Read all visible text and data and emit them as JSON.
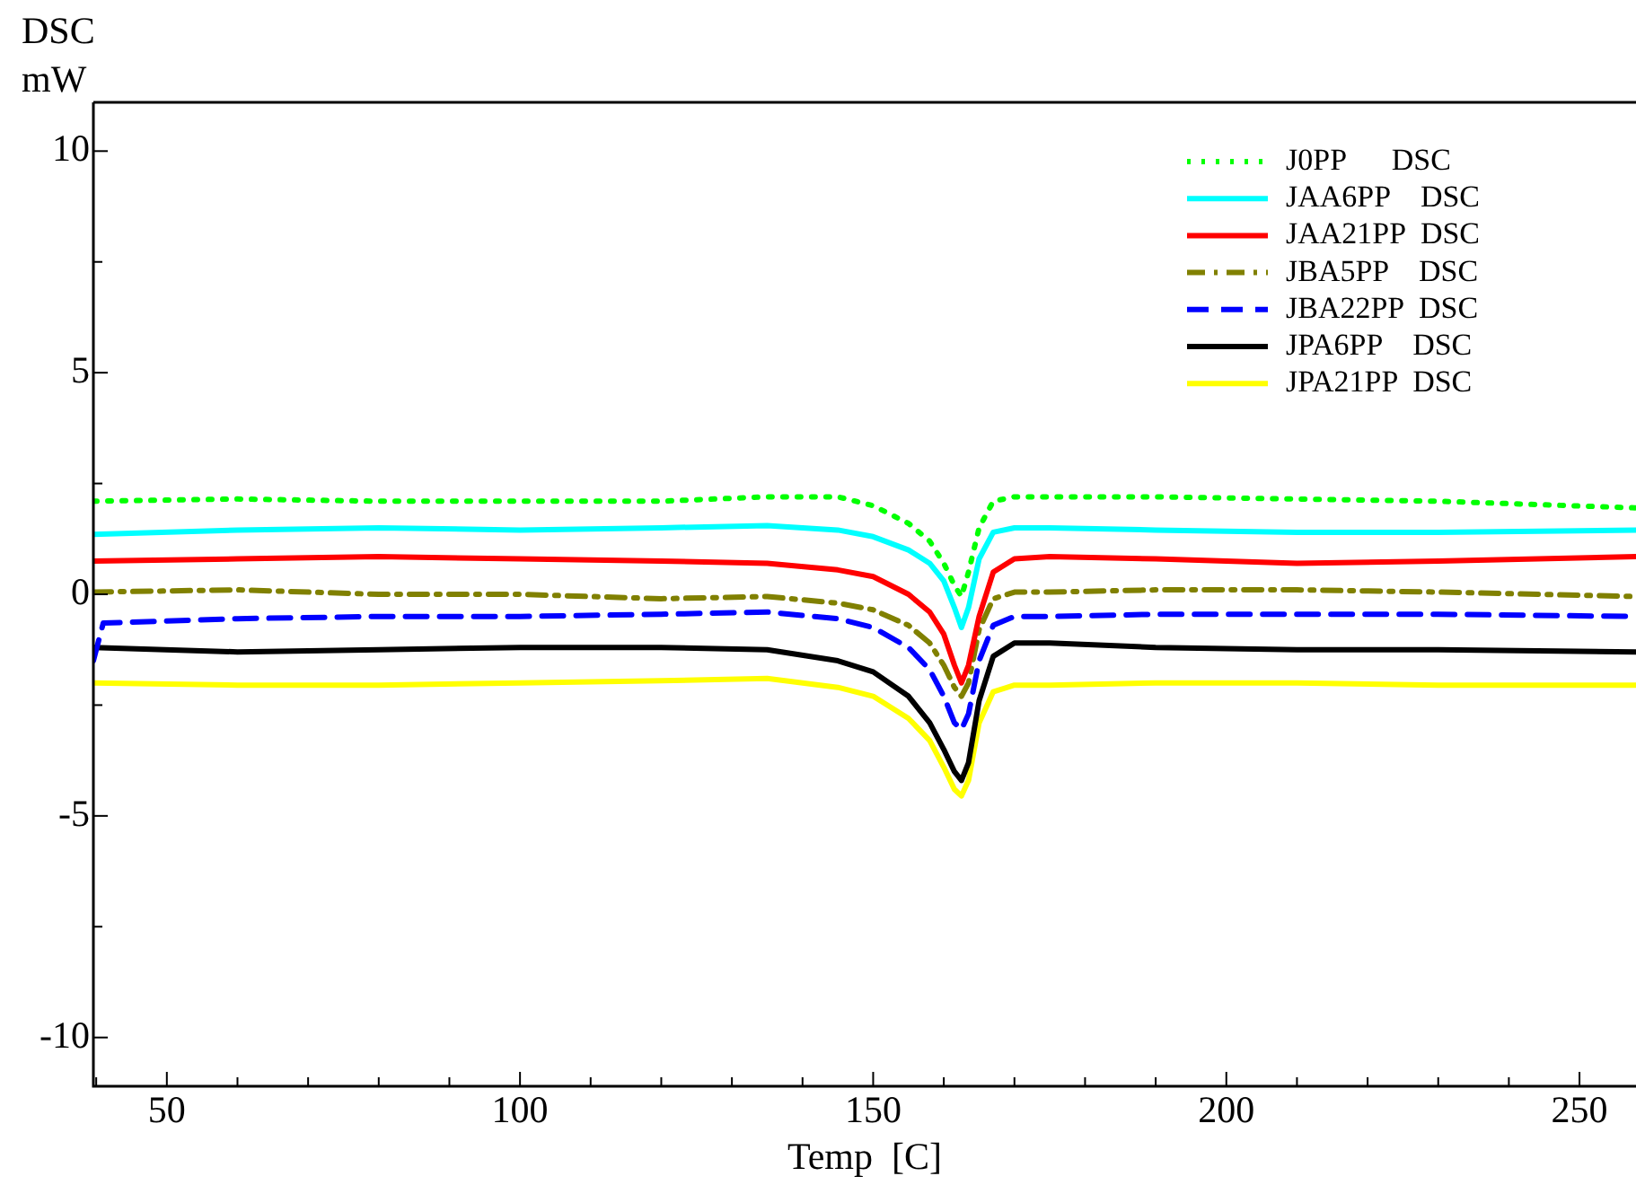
{
  "chart_data": {
    "type": "line",
    "xlabel": "Temp  [C]",
    "ylabel": "DSC mW",
    "x": [
      39.6,
      60,
      80,
      100,
      120,
      135,
      145,
      150,
      155,
      158,
      160,
      161.5,
      162.5,
      163.5,
      165,
      167,
      170,
      175,
      190,
      210,
      230,
      258
    ],
    "xlim": [
      39.6,
      258
    ],
    "ylim": [
      -11.1,
      11.1
    ],
    "xticks": [
      {
        "value": 40,
        "label": null
      },
      50,
      {
        "value": 60,
        "label": null
      },
      {
        "value": 70,
        "label": null
      },
      {
        "value": 80,
        "label": null
      },
      {
        "value": 90,
        "label": null
      },
      100,
      {
        "value": 110,
        "label": null
      },
      {
        "value": 120,
        "label": null
      },
      {
        "value": 130,
        "label": null
      },
      {
        "value": 140,
        "label": null
      },
      150,
      {
        "value": 160,
        "label": null
      },
      {
        "value": 170,
        "label": null
      },
      {
        "value": 180,
        "label": null
      },
      {
        "value": 190,
        "label": null
      },
      200,
      {
        "value": 210,
        "label": null
      },
      {
        "value": 220,
        "label": null
      },
      {
        "value": 230,
        "label": null
      },
      {
        "value": 240,
        "label": null
      },
      250
    ],
    "yticks": [
      -10,
      {
        "value": -7.5,
        "label": null
      },
      -5,
      {
        "value": -2.5,
        "label": null
      },
      0,
      {
        "value": 2.5,
        "label": null
      },
      5,
      {
        "value": 7.5,
        "label": null
      },
      10
    ],
    "grid": false,
    "legend": "top right",
    "marker": "none",
    "series": [
      {
        "name": "J0PP      DSC",
        "color": "#00ff00",
        "line_style": "dotted",
        "values": [
          2.1,
          2.15,
          2.1,
          2.1,
          2.1,
          2.2,
          2.2,
          2.0,
          1.6,
          1.2,
          0.7,
          0.2,
          -0.05,
          0.5,
          1.5,
          2.1,
          2.2,
          2.2,
          2.2,
          2.15,
          2.1,
          1.95
        ]
      },
      {
        "name": "JAA6PP    DSC",
        "color": "#00ffff",
        "line_style": "solid",
        "values": [
          1.35,
          1.45,
          1.5,
          1.45,
          1.5,
          1.55,
          1.45,
          1.3,
          1.0,
          0.7,
          0.3,
          -0.3,
          -0.75,
          -0.3,
          0.8,
          1.4,
          1.5,
          1.5,
          1.45,
          1.4,
          1.4,
          1.45
        ]
      },
      {
        "name": "JAA21PP  DSC",
        "color": "#ff0000",
        "line_style": "solid",
        "values": [
          0.75,
          0.8,
          0.85,
          0.8,
          0.75,
          0.7,
          0.55,
          0.4,
          0.0,
          -0.4,
          -0.9,
          -1.6,
          -2.0,
          -1.6,
          -0.5,
          0.5,
          0.8,
          0.85,
          0.8,
          0.7,
          0.75,
          0.85
        ]
      },
      {
        "name": "JBA5PP    DSC",
        "color": "#808000",
        "line_style": "dashdot",
        "values": [
          0.05,
          0.1,
          0.0,
          0.0,
          -0.1,
          -0.05,
          -0.2,
          -0.35,
          -0.7,
          -1.1,
          -1.6,
          -2.1,
          -2.3,
          -2.0,
          -0.8,
          -0.1,
          0.05,
          0.05,
          0.1,
          0.1,
          0.05,
          -0.05
        ]
      },
      {
        "name": "JBA22PP  DSC",
        "color": "#0000ff",
        "line_style": "dashed",
        "x": [
          39.6,
          41,
          60,
          80,
          100,
          120,
          135,
          145,
          150,
          155,
          158,
          160,
          161.5,
          162.5,
          163.5,
          165,
          167,
          170,
          175,
          190,
          210,
          230,
          258
        ],
        "values": [
          -1.5,
          -0.65,
          -0.55,
          -0.5,
          -0.5,
          -0.45,
          -0.4,
          -0.55,
          -0.75,
          -1.2,
          -1.7,
          -2.3,
          -2.9,
          -3.05,
          -2.7,
          -1.5,
          -0.7,
          -0.5,
          -0.5,
          -0.45,
          -0.45,
          -0.45,
          -0.5
        ]
      },
      {
        "name": "JPA6PP    DSC",
        "color": "#000000",
        "line_style": "solid",
        "values": [
          -1.2,
          -1.3,
          -1.25,
          -1.2,
          -1.2,
          -1.25,
          -1.5,
          -1.75,
          -2.3,
          -2.9,
          -3.5,
          -4.0,
          -4.2,
          -3.8,
          -2.4,
          -1.4,
          -1.1,
          -1.1,
          -1.2,
          -1.25,
          -1.25,
          -1.3
        ]
      },
      {
        "name": "JPA21PP  DSC",
        "color": "#ffff00",
        "line_style": "solid",
        "values": [
          -2.0,
          -2.05,
          -2.05,
          -2.0,
          -1.95,
          -1.9,
          -2.1,
          -2.3,
          -2.8,
          -3.3,
          -3.9,
          -4.4,
          -4.55,
          -4.2,
          -2.9,
          -2.2,
          -2.05,
          -2.05,
          -2.0,
          -2.0,
          -2.05,
          -2.05
        ]
      }
    ]
  }
}
